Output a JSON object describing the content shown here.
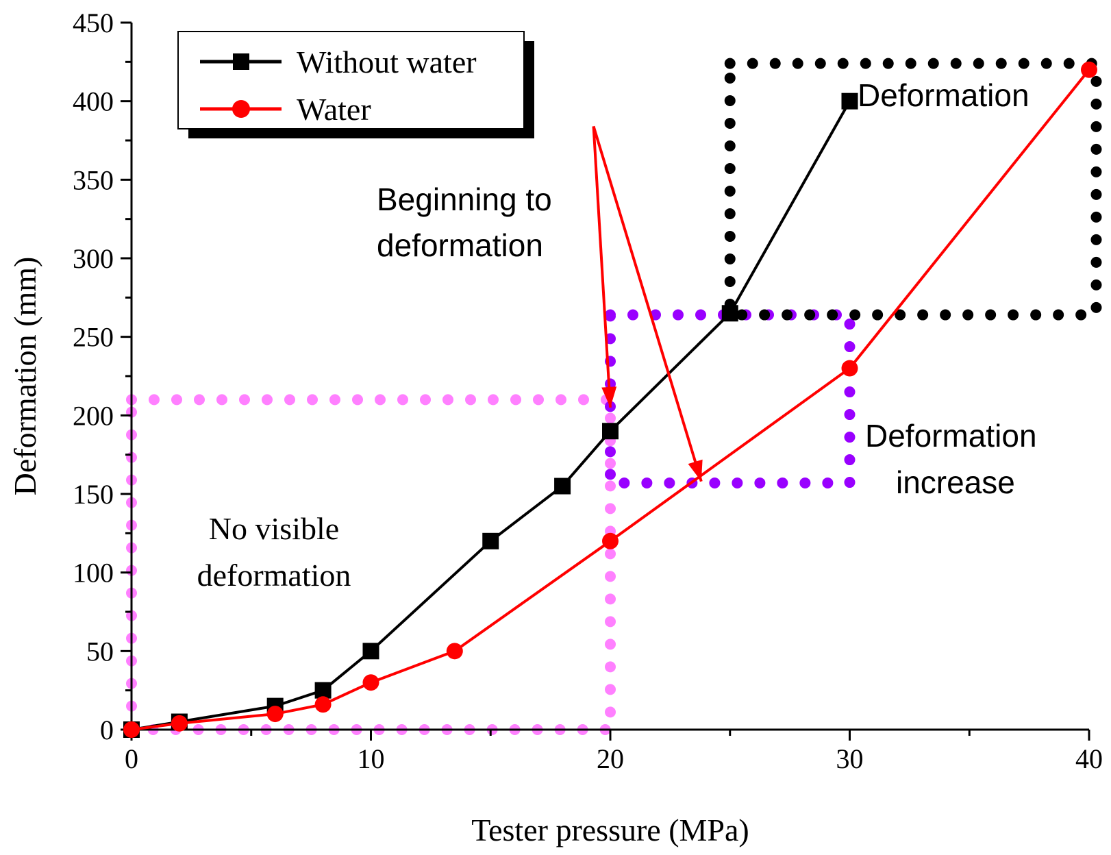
{
  "chart_data": {
    "type": "line",
    "xlabel": "Tester pressure (MPa)",
    "ylabel": "Deformation (mm)",
    "xlim": [
      0,
      40
    ],
    "ylim": [
      0,
      450
    ],
    "x_ticks": [
      0,
      10,
      20,
      30,
      40
    ],
    "y_ticks": [
      0,
      50,
      100,
      150,
      200,
      250,
      300,
      350,
      400,
      450
    ],
    "grid": false,
    "legend_position": "top-left",
    "series": [
      {
        "name": "Without water",
        "color": "#000000",
        "marker": "square",
        "x": [
          0,
          2,
          6,
          8,
          10,
          15,
          18,
          20,
          25,
          30
        ],
        "y": [
          0,
          5,
          15,
          25,
          50,
          120,
          155,
          190,
          265,
          400
        ]
      },
      {
        "name": "Water",
        "color": "#ff0000",
        "marker": "circle",
        "x": [
          0,
          2,
          6,
          8,
          10,
          13.5,
          20,
          30,
          40
        ],
        "y": [
          0,
          4,
          10,
          16,
          30,
          50,
          120,
          230,
          420
        ]
      }
    ],
    "regions": [
      {
        "name": "no-visible-deformation-box",
        "color": "#ff80ff",
        "x": [
          0,
          20
        ],
        "y": [
          0,
          210
        ]
      },
      {
        "name": "deformation-increase-box",
        "color": "#9900ff",
        "x": [
          20,
          30
        ],
        "y": [
          157,
          264
        ]
      },
      {
        "name": "deformation-box",
        "color": "#000000",
        "x": [
          25,
          40.3
        ],
        "y": [
          264,
          424
        ]
      }
    ],
    "annotations": {
      "no_visible_line1": "No visible",
      "no_visible_line2": "deformation",
      "beginning_line1": "Beginning to",
      "beginning_line2": "deformation",
      "increase_line1": "Deformation",
      "increase_line2": "increase",
      "deformation": "Deformation"
    },
    "arrows": [
      {
        "from": [
          19.3,
          384
        ],
        "to": [
          20,
          205
        ]
      },
      {
        "from": [
          19.3,
          384
        ],
        "to": [
          23.8,
          158
        ]
      }
    ]
  }
}
